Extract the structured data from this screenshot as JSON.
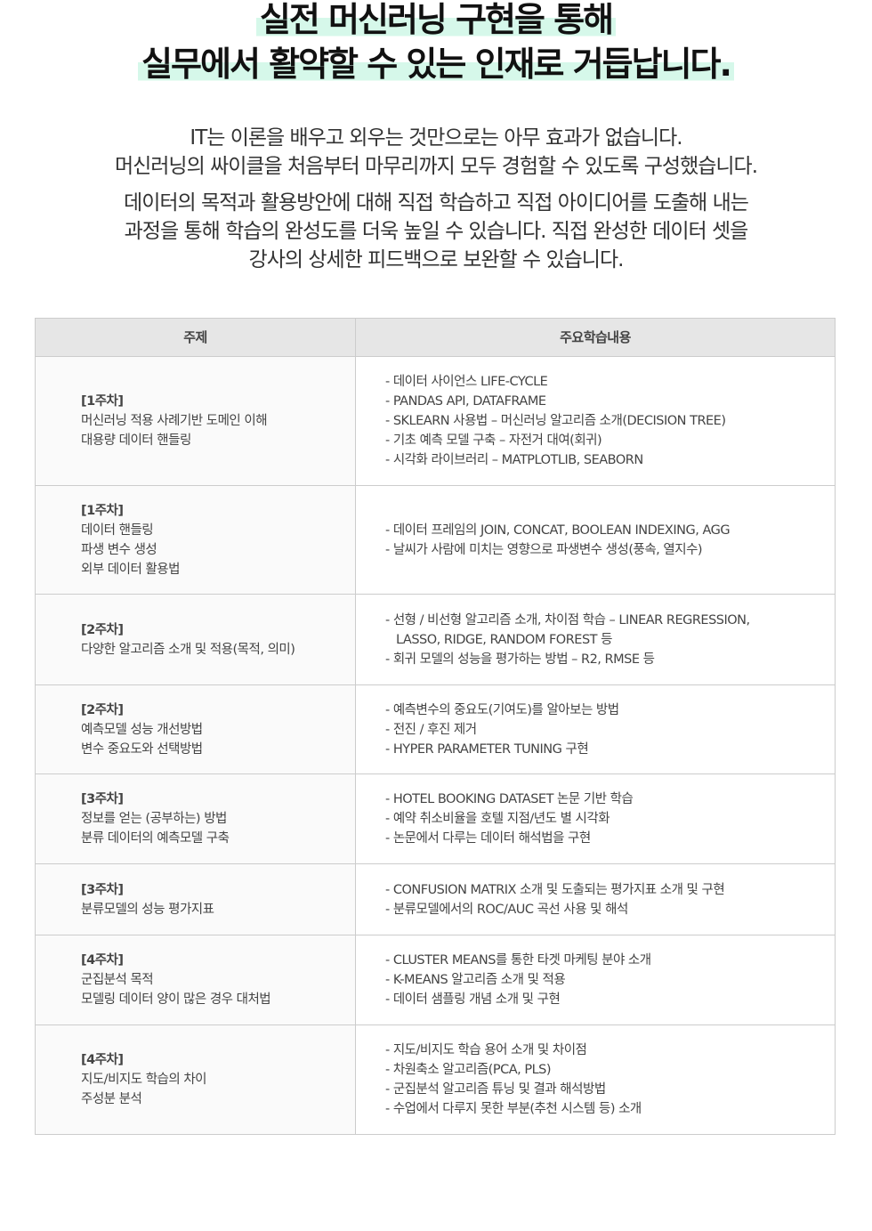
{
  "headline": {
    "line1": "실전 머신러닝 구현을 통해",
    "line2": "실무에서 활약할 수 있는 인재로 거듭납니다.",
    "highlight_color": "#d6f8ea"
  },
  "intro": {
    "paragraph1": [
      "IT는 이론을 배우고 외우는 것만으로는 아무 효과가 없습니다.",
      "머신러닝의 싸이클을 처음부터 마무리까지 모두 경험할 수 있도록 구성했습니다."
    ],
    "paragraph2": [
      "데이터의 목적과 활용방안에 대해 직접 학습하고 직접 아이디어를 도출해 내는",
      "과정을 통해 학습의 완성도를 더욱 높일 수 있습니다. 직접 완성한 데이터 셋을",
      "강사의 상세한 피드백으로 보완할 수 있습니다."
    ]
  },
  "table": {
    "headers": [
      "주제",
      "주요학습내용"
    ],
    "rows": [
      {
        "week": "[1주차]",
        "topics": [
          "머신러닝 적용 사례기반 도메인 이해",
          "대용량 데이터 핸들링"
        ],
        "content": [
          "- 데이터 사이언스 LIFE-CYCLE",
          "- PANDAS API, DATAFRAME",
          "- SKLEARN 사용법 – 머신러닝 알고리즘 소개(DECISION TREE)",
          "- 기초 예측 모델 구축 – 자전거 대여(회귀)",
          "- 시각화 라이브러리 – MATPLOTLIB, SEABORN"
        ]
      },
      {
        "week": "[1주차]",
        "topics": [
          "데이터 핸들링",
          "파생 변수 생성",
          "외부 데이터 활용법"
        ],
        "content": [
          "- 데이터 프레임의 JOIN, CONCAT, BOOLEAN INDEXING, AGG",
          "- 날씨가 사람에 미치는 영향으로 파생변수 생성(풍속, 열지수)"
        ]
      },
      {
        "week": "[2주차]",
        "topics": [
          "다양한 알고리즘 소개 및 적용(목적, 의미)"
        ],
        "content": [
          "- 선형 / 비선형 알고리즘 소개, 차이점 학습 – LINEAR REGRESSION,",
          "LASSO, RIDGE, RANDOM FOREST 등",
          "- 회귀 모델의 성능을 평가하는 방법 – R2, RMSE 등"
        ]
      },
      {
        "week": "[2주차]",
        "topics": [
          "예측모델 성능 개선방법",
          "변수 중요도와 선택방법"
        ],
        "content": [
          "- 예측변수의 중요도(기여도)를 알아보는 방법",
          "- 전진 / 후진 제거",
          "- HYPER PARAMETER TUNING 구현"
        ]
      },
      {
        "week": "[3주차]",
        "topics": [
          "정보를 얻는 (공부하는) 방법",
          "분류 데이터의 예측모델 구축"
        ],
        "content": [
          "- HOTEL BOOKING DATASET 논문 기반 학습",
          "- 예약 취소비율을 호텔 지점/년도 별 시각화",
          "- 논문에서 다루는 데이터 해석법을 구현"
        ]
      },
      {
        "week": "[3주차]",
        "topics": [
          "분류모델의 성능 평가지표"
        ],
        "content": [
          "- CONFUSION MATRIX 소개 및 도출되는 평가지표 소개 및 구현",
          "- 분류모델에서의 ROC/AUC 곡선 사용 및 해석"
        ]
      },
      {
        "week": "[4주차]",
        "topics": [
          "군집분석 목적",
          "모델링 데이터 양이 많은 경우 대처법"
        ],
        "content": [
          "- CLUSTER MEANS를 통한 타겟 마케팅 분야 소개",
          "- K-MEANS 알고리즘 소개 및 적용",
          "- 데이터 샘플링 개념 소개 및 구현"
        ]
      },
      {
        "week": "[4주차]",
        "topics": [
          "지도/비지도 학습의 차이",
          "주성분 분석"
        ],
        "content": [
          "- 지도/비지도 학습 용어 소개 및 차이점",
          "- 차원축소 알고리즘(PCA, PLS)",
          "- 군집분석 알고리즘 튜닝 및 결과 해석방법",
          "- 수업에서 다루지 못한 부분(추천 시스템 등) 소개"
        ]
      }
    ]
  }
}
